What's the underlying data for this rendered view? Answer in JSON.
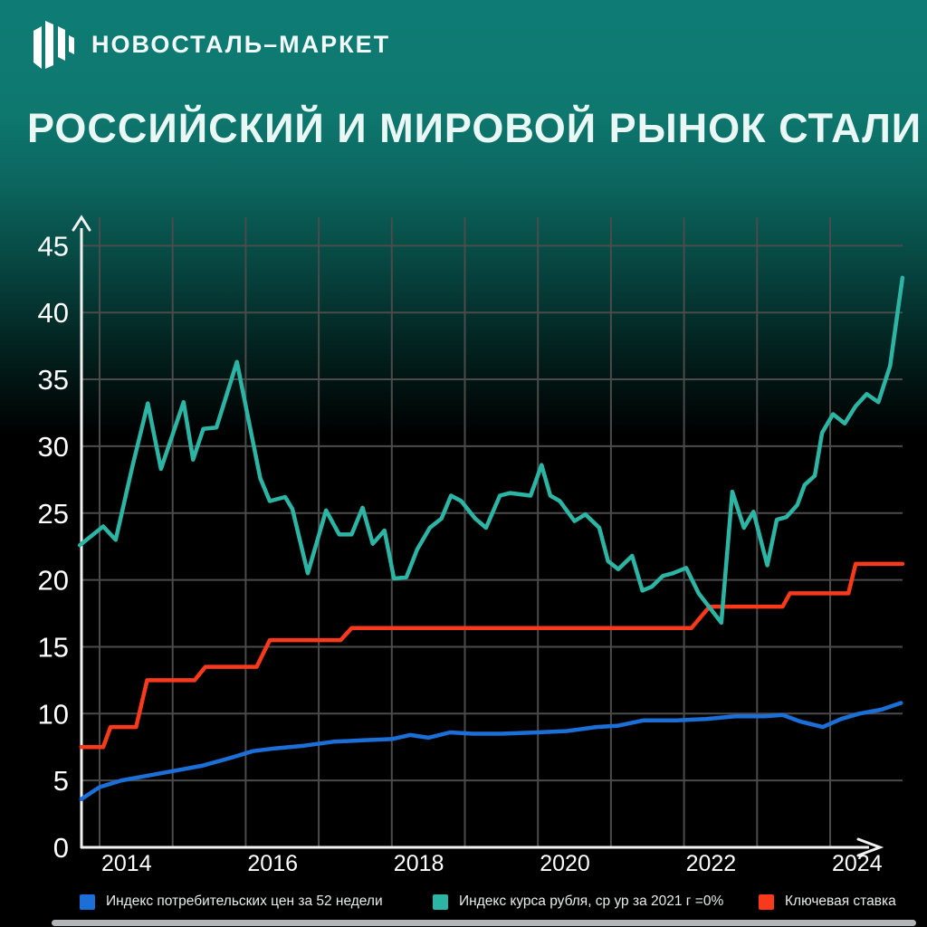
{
  "header": {
    "logo_text": "НОВОСТАЛЬ–МАРКЕТ"
  },
  "title": "РОССИЙСКИЙ И МИРОВОЙ РЫНОК СТАЛИ",
  "colors": {
    "background_top": "#0e7c75",
    "background_bottom": "#000000",
    "grid": "#4b4b4b",
    "axis": "#f2f2f2",
    "tick_text": "#ffffff",
    "cpi": "#1b6fd6",
    "ruble": "#2cb5a4",
    "key_rate": "#f8391b"
  },
  "chart_data": {
    "type": "line",
    "title": "РОССИЙСКИЙ И МИРОВОЙ РЫНОК СТАЛИ",
    "grid": true,
    "legend_position": "bottom",
    "x_axis": {
      "range": [
        2013.7,
        2025.05
      ],
      "gridline_years": [
        2014,
        2015,
        2016,
        2017,
        2018,
        2019,
        2020,
        2021,
        2022,
        2023,
        2024
      ],
      "tick_labels": [
        "2014",
        "2016",
        "2018",
        "2020",
        "2022",
        "2024"
      ],
      "tick_years": [
        2014,
        2016,
        2018,
        2020,
        2022,
        2024
      ]
    },
    "y_axis": {
      "range": [
        0,
        46.5
      ],
      "ticks": [
        0,
        5,
        10,
        15,
        20,
        25,
        30,
        35,
        40,
        45
      ]
    },
    "series": [
      {
        "id": "cpi",
        "name": "Индекс потребительских цен за 52 недели",
        "color": "#1b6fd6",
        "points": [
          [
            2013.75,
            3.6
          ],
          [
            2014.0,
            4.5
          ],
          [
            2014.3,
            5.0
          ],
          [
            2014.6,
            5.3
          ],
          [
            2015.0,
            5.7
          ],
          [
            2015.4,
            6.1
          ],
          [
            2015.8,
            6.7
          ],
          [
            2016.1,
            7.2
          ],
          [
            2016.4,
            7.4
          ],
          [
            2016.8,
            7.6
          ],
          [
            2017.2,
            7.9
          ],
          [
            2017.6,
            8.0
          ],
          [
            2018.0,
            8.1
          ],
          [
            2018.25,
            8.4
          ],
          [
            2018.5,
            8.2
          ],
          [
            2018.8,
            8.6
          ],
          [
            2019.1,
            8.5
          ],
          [
            2019.5,
            8.5
          ],
          [
            2020.0,
            8.6
          ],
          [
            2020.4,
            8.7
          ],
          [
            2020.8,
            9.0
          ],
          [
            2021.1,
            9.1
          ],
          [
            2021.45,
            9.5
          ],
          [
            2021.9,
            9.5
          ],
          [
            2022.3,
            9.6
          ],
          [
            2022.7,
            9.8
          ],
          [
            2023.1,
            9.8
          ],
          [
            2023.35,
            9.9
          ],
          [
            2023.6,
            9.4
          ],
          [
            2023.9,
            9.0
          ],
          [
            2024.15,
            9.6
          ],
          [
            2024.4,
            10.0
          ],
          [
            2024.7,
            10.3
          ],
          [
            2024.97,
            10.8
          ]
        ]
      },
      {
        "id": "ruble",
        "name": "Индекс курса рубля, ср ур за 2021 г =0%",
        "color": "#2cb5a4",
        "points": [
          [
            2013.73,
            22.6
          ],
          [
            2014.05,
            24.0
          ],
          [
            2014.22,
            23.0
          ],
          [
            2014.45,
            28.5
          ],
          [
            2014.66,
            33.2
          ],
          [
            2014.84,
            28.3
          ],
          [
            2015.15,
            33.3
          ],
          [
            2015.28,
            29.0
          ],
          [
            2015.42,
            31.3
          ],
          [
            2015.6,
            31.4
          ],
          [
            2015.88,
            36.3
          ],
          [
            2016.2,
            27.6
          ],
          [
            2016.33,
            25.9
          ],
          [
            2016.54,
            26.2
          ],
          [
            2016.64,
            25.3
          ],
          [
            2016.85,
            20.5
          ],
          [
            2017.1,
            25.2
          ],
          [
            2017.28,
            23.4
          ],
          [
            2017.45,
            23.4
          ],
          [
            2017.6,
            25.4
          ],
          [
            2017.74,
            22.7
          ],
          [
            2017.9,
            23.7
          ],
          [
            2018.03,
            20.1
          ],
          [
            2018.2,
            20.2
          ],
          [
            2018.35,
            22.3
          ],
          [
            2018.52,
            23.9
          ],
          [
            2018.68,
            24.6
          ],
          [
            2018.81,
            26.3
          ],
          [
            2018.95,
            25.9
          ],
          [
            2019.14,
            24.6
          ],
          [
            2019.29,
            23.9
          ],
          [
            2019.48,
            26.3
          ],
          [
            2019.62,
            26.5
          ],
          [
            2019.9,
            26.3
          ],
          [
            2020.05,
            28.6
          ],
          [
            2020.17,
            26.3
          ],
          [
            2020.3,
            25.9
          ],
          [
            2020.5,
            24.4
          ],
          [
            2020.65,
            24.9
          ],
          [
            2020.84,
            23.9
          ],
          [
            2020.96,
            21.4
          ],
          [
            2021.1,
            20.8
          ],
          [
            2021.29,
            21.8
          ],
          [
            2021.43,
            19.2
          ],
          [
            2021.56,
            19.5
          ],
          [
            2021.71,
            20.3
          ],
          [
            2021.85,
            20.5
          ],
          [
            2022.03,
            20.9
          ],
          [
            2022.2,
            19.0
          ],
          [
            2022.51,
            16.8
          ],
          [
            2022.66,
            26.6
          ],
          [
            2022.82,
            23.9
          ],
          [
            2022.95,
            25.1
          ],
          [
            2023.14,
            21.1
          ],
          [
            2023.27,
            24.5
          ],
          [
            2023.4,
            24.7
          ],
          [
            2023.55,
            25.6
          ],
          [
            2023.65,
            27.1
          ],
          [
            2023.79,
            27.8
          ],
          [
            2023.89,
            31.0
          ],
          [
            2024.04,
            32.4
          ],
          [
            2024.2,
            31.7
          ],
          [
            2024.35,
            33.0
          ],
          [
            2024.5,
            33.9
          ],
          [
            2024.66,
            33.3
          ],
          [
            2024.82,
            36.0
          ],
          [
            2024.99,
            42.6
          ]
        ]
      },
      {
        "id": "key_rate",
        "name": "Ключевая ставка",
        "color": "#f8391b",
        "points": [
          [
            2013.75,
            7.5
          ],
          [
            2014.05,
            7.5
          ],
          [
            2014.15,
            9.0
          ],
          [
            2014.5,
            9.0
          ],
          [
            2014.65,
            12.5
          ],
          [
            2015.3,
            12.5
          ],
          [
            2015.45,
            13.5
          ],
          [
            2016.15,
            13.5
          ],
          [
            2016.33,
            15.5
          ],
          [
            2017.3,
            15.5
          ],
          [
            2017.45,
            16.4
          ],
          [
            2022.1,
            16.4
          ],
          [
            2022.35,
            18.0
          ],
          [
            2023.35,
            18.0
          ],
          [
            2023.45,
            19.0
          ],
          [
            2024.25,
            19.0
          ],
          [
            2024.35,
            21.2
          ],
          [
            2024.99,
            21.2
          ]
        ]
      }
    ]
  },
  "legend": {
    "items": [
      {
        "series_index": 0,
        "label": "Индекс потребительских цен за 52 недели"
      },
      {
        "series_index": 1,
        "label": "Индекс курса рубля, ср ур за 2021 г =0%"
      },
      {
        "series_index": 2,
        "label": "Ключевая ставка"
      }
    ]
  }
}
